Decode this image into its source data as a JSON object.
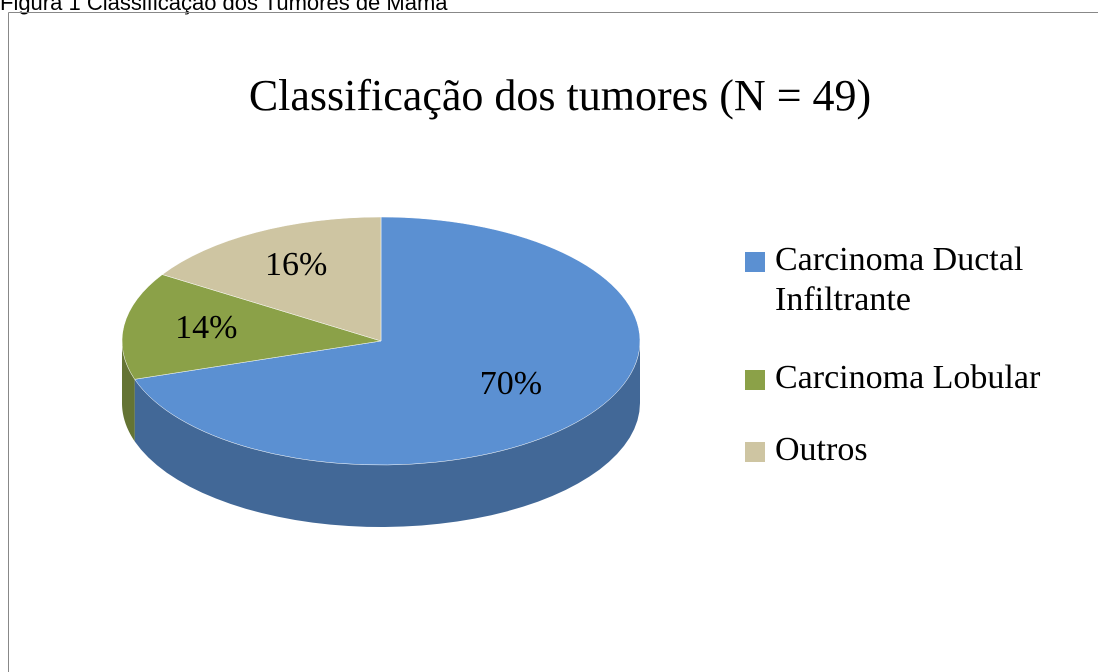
{
  "caption": "Figura 1 Classificação dos Tumores de Mama",
  "chart_data": {
    "type": "pie",
    "title": "Classificação dos tumores (N = 49)",
    "categories": [
      "Carcinoma Ductal Infiltrante",
      "Carcinoma Lobular",
      "Outros"
    ],
    "values": [
      70,
      14,
      16
    ],
    "value_labels": [
      "70%",
      "14%",
      "16%"
    ],
    "colors": [
      "#5b90d2",
      "#8ba148",
      "#cec5a2"
    ],
    "legend": "right"
  }
}
